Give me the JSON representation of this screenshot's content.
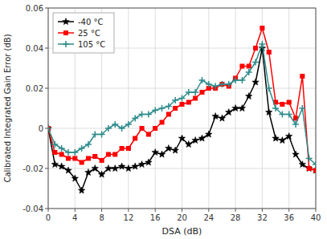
{
  "chart_data": {
    "type": "line",
    "xlabel": "DSA (dB)",
    "ylabel": "Calibrated Integrated Gain Error (dB)",
    "x": [
      0,
      1,
      2,
      3,
      4,
      5,
      6,
      7,
      8,
      9,
      10,
      11,
      12,
      13,
      14,
      15,
      16,
      17,
      18,
      19,
      20,
      21,
      22,
      23,
      24,
      25,
      26,
      27,
      28,
      29,
      30,
      31,
      32,
      33,
      34,
      35,
      36,
      37,
      38,
      39,
      40
    ],
    "series": [
      {
        "name": "-40 °C",
        "color": "#000000",
        "marker": "star",
        "values": [
          0.0,
          -0.018,
          -0.019,
          -0.021,
          -0.025,
          -0.031,
          -0.022,
          -0.02,
          -0.023,
          -0.02,
          -0.02,
          -0.019,
          -0.02,
          -0.019,
          -0.018,
          -0.017,
          -0.012,
          -0.013,
          -0.01,
          -0.011,
          -0.005,
          -0.008,
          -0.006,
          -0.005,
          -0.003,
          0.006,
          0.005,
          0.008,
          0.01,
          0.01,
          0.016,
          0.023,
          0.04,
          0.008,
          -0.005,
          -0.006,
          -0.004,
          -0.013,
          -0.018,
          -0.02,
          -0.021
        ]
      },
      {
        "name": "25 °C",
        "color": "#ff0000",
        "marker": "square",
        "values": [
          0.0,
          -0.012,
          -0.013,
          -0.015,
          -0.015,
          -0.017,
          -0.015,
          -0.014,
          -0.016,
          -0.013,
          -0.013,
          -0.01,
          -0.01,
          -0.005,
          0.0,
          -0.003,
          0.0,
          0.003,
          0.007,
          0.01,
          0.012,
          0.013,
          0.015,
          0.018,
          0.02,
          0.02,
          0.022,
          0.021,
          0.025,
          0.031,
          0.031,
          0.04,
          0.05,
          0.038,
          0.013,
          0.012,
          0.013,
          0.005,
          0.026,
          -0.02,
          -0.021
        ]
      },
      {
        "name": "105 °C",
        "color": "#2e8b8b",
        "marker": "plus",
        "values": [
          0.0,
          -0.008,
          -0.01,
          -0.012,
          -0.012,
          -0.01,
          -0.008,
          -0.003,
          -0.003,
          0.0,
          0.002,
          0.0,
          0.002,
          0.005,
          0.007,
          0.007,
          0.009,
          0.01,
          0.011,
          0.014,
          0.015,
          0.018,
          0.018,
          0.024,
          0.022,
          0.021,
          0.022,
          0.022,
          0.024,
          0.024,
          0.028,
          0.033,
          0.042,
          0.02,
          0.01,
          0.007,
          0.007,
          0.002,
          0.01,
          -0.015,
          -0.018
        ]
      }
    ],
    "xlim": [
      0,
      40
    ],
    "ylim": [
      -0.04,
      0.06
    ],
    "xticks": [
      0,
      4,
      8,
      12,
      16,
      20,
      24,
      28,
      32,
      36,
      40
    ],
    "yticks": [
      -0.04,
      -0.02,
      0,
      0.02,
      0.04,
      0.06
    ],
    "grid": true,
    "legend": "upper-left"
  }
}
